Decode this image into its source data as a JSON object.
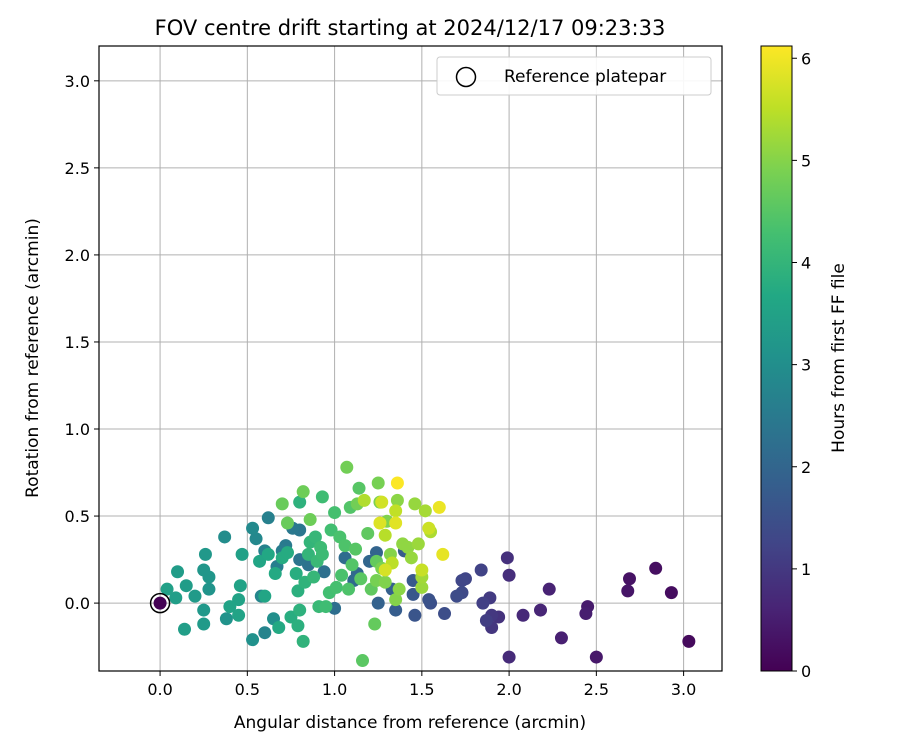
{
  "chart_data": {
    "type": "scatter",
    "title": "FOV centre drift starting at 2024/12/17 09:23:33",
    "xlabel": "Angular distance from reference (arcmin)",
    "ylabel": "Rotation from reference (arcmin)",
    "xlim": [
      -0.35,
      3.22
    ],
    "ylim": [
      -0.39,
      3.2
    ],
    "xticks": [
      0.0,
      0.5,
      1.0,
      1.5,
      2.0,
      2.5,
      3.0
    ],
    "xtick_labels": [
      "0.0",
      "0.5",
      "1.0",
      "1.5",
      "2.0",
      "2.5",
      "3.0"
    ],
    "yticks": [
      0.0,
      0.5,
      1.0,
      1.5,
      2.0,
      2.5,
      3.0
    ],
    "ytick_labels": [
      "0.0",
      "0.5",
      "1.0",
      "1.5",
      "2.0",
      "2.5",
      "3.0"
    ],
    "grid": true,
    "legend": {
      "position": "top-right",
      "entries": [
        "Reference platepar"
      ]
    },
    "colorbar": {
      "label": "Hours from first FF file",
      "colormap": "viridis",
      "range": [
        0,
        6.12
      ],
      "ticks": [
        0,
        1,
        2,
        3,
        4,
        5,
        6
      ],
      "tick_labels": [
        "0",
        "1",
        "2",
        "3",
        "4",
        "5",
        "6"
      ]
    },
    "reference_point": {
      "x": 0.0,
      "y": 0.0,
      "name": "Reference platepar"
    },
    "points": [
      {
        "x": 0.0,
        "y": 0.0,
        "c": 0.0
      },
      {
        "x": 3.03,
        "y": -0.22,
        "c": 0.15
      },
      {
        "x": 2.93,
        "y": 0.06,
        "c": 0.2
      },
      {
        "x": 2.84,
        "y": 0.2,
        "c": 0.25
      },
      {
        "x": 2.69,
        "y": 0.14,
        "c": 0.3
      },
      {
        "x": 2.68,
        "y": 0.07,
        "c": 0.35
      },
      {
        "x": 2.5,
        "y": -0.31,
        "c": 0.4
      },
      {
        "x": 2.45,
        "y": -0.02,
        "c": 0.45
      },
      {
        "x": 2.44,
        "y": -0.06,
        "c": 0.5
      },
      {
        "x": 2.3,
        "y": -0.2,
        "c": 0.55
      },
      {
        "x": 2.23,
        "y": 0.08,
        "c": 0.6
      },
      {
        "x": 2.18,
        "y": -0.04,
        "c": 0.65
      },
      {
        "x": 2.08,
        "y": -0.07,
        "c": 0.7
      },
      {
        "x": 2.0,
        "y": -0.31,
        "c": 0.75
      },
      {
        "x": 2.0,
        "y": 0.16,
        "c": 0.8
      },
      {
        "x": 1.99,
        "y": 0.26,
        "c": 0.85
      },
      {
        "x": 1.94,
        "y": -0.08,
        "c": 0.9
      },
      {
        "x": 1.9,
        "y": -0.14,
        "c": 0.95
      },
      {
        "x": 1.9,
        "y": -0.07,
        "c": 1.0
      },
      {
        "x": 1.89,
        "y": 0.03,
        "c": 1.05
      },
      {
        "x": 1.87,
        "y": -0.1,
        "c": 1.1
      },
      {
        "x": 1.85,
        "y": 0.0,
        "c": 1.15
      },
      {
        "x": 1.84,
        "y": 0.19,
        "c": 1.2
      },
      {
        "x": 1.75,
        "y": 0.14,
        "c": 1.25
      },
      {
        "x": 1.73,
        "y": 0.13,
        "c": 1.3
      },
      {
        "x": 1.73,
        "y": 0.06,
        "c": 1.35
      },
      {
        "x": 1.7,
        "y": 0.04,
        "c": 1.4
      },
      {
        "x": 1.63,
        "y": -0.06,
        "c": 1.45
      },
      {
        "x": 1.55,
        "y": 0.0,
        "c": 1.5
      },
      {
        "x": 1.54,
        "y": 0.02,
        "c": 1.55
      },
      {
        "x": 1.46,
        "y": -0.07,
        "c": 1.6
      },
      {
        "x": 1.45,
        "y": 0.05,
        "c": 1.65
      },
      {
        "x": 1.45,
        "y": 0.13,
        "c": 1.7
      },
      {
        "x": 1.4,
        "y": 0.3,
        "c": 1.75
      },
      {
        "x": 1.35,
        "y": -0.04,
        "c": 1.8
      },
      {
        "x": 1.33,
        "y": 0.08,
        "c": 1.85
      },
      {
        "x": 1.25,
        "y": 0.0,
        "c": 1.9
      },
      {
        "x": 1.24,
        "y": 0.29,
        "c": 1.95
      },
      {
        "x": 1.2,
        "y": 0.24,
        "c": 2.0
      },
      {
        "x": 1.13,
        "y": 0.17,
        "c": 2.05
      },
      {
        "x": 1.11,
        "y": 0.13,
        "c": 2.1
      },
      {
        "x": 1.06,
        "y": 0.26,
        "c": 2.15
      },
      {
        "x": 1.0,
        "y": -0.03,
        "c": 2.2
      },
      {
        "x": 0.94,
        "y": 0.18,
        "c": 2.25
      },
      {
        "x": 0.85,
        "y": 0.22,
        "c": 2.3
      },
      {
        "x": 0.8,
        "y": 0.25,
        "c": 2.35
      },
      {
        "x": 0.8,
        "y": 0.42,
        "c": 2.4
      },
      {
        "x": 0.76,
        "y": 0.43,
        "c": 2.45
      },
      {
        "x": 0.72,
        "y": 0.33,
        "c": 2.5
      },
      {
        "x": 0.7,
        "y": 0.3,
        "c": 2.55
      },
      {
        "x": 0.67,
        "y": 0.21,
        "c": 2.6
      },
      {
        "x": 0.62,
        "y": 0.49,
        "c": 2.65
      },
      {
        "x": 0.6,
        "y": 0.3,
        "c": 2.7
      },
      {
        "x": 0.6,
        "y": -0.17,
        "c": 2.75
      },
      {
        "x": 0.58,
        "y": 0.04,
        "c": 2.8
      },
      {
        "x": 0.55,
        "y": 0.37,
        "c": 2.85
      },
      {
        "x": 0.53,
        "y": 0.43,
        "c": 2.9
      },
      {
        "x": 0.37,
        "y": 0.38,
        "c": 2.95
      },
      {
        "x": 0.65,
        "y": -0.09,
        "c": 3.0
      },
      {
        "x": 0.53,
        "y": -0.21,
        "c": 3.05
      },
      {
        "x": 0.38,
        "y": -0.09,
        "c": 3.1
      },
      {
        "x": 0.28,
        "y": 0.08,
        "c": 3.15
      },
      {
        "x": 0.28,
        "y": 0.15,
        "c": 3.2
      },
      {
        "x": 0.25,
        "y": 0.19,
        "c": 3.2
      },
      {
        "x": 0.26,
        "y": 0.28,
        "c": 3.25
      },
      {
        "x": 0.25,
        "y": -0.04,
        "c": 3.25
      },
      {
        "x": 0.25,
        "y": -0.12,
        "c": 3.3
      },
      {
        "x": 0.2,
        "y": 0.04,
        "c": 3.3
      },
      {
        "x": 0.15,
        "y": 0.1,
        "c": 3.35
      },
      {
        "x": 0.1,
        "y": 0.18,
        "c": 3.35
      },
      {
        "x": 0.14,
        "y": -0.15,
        "c": 3.4
      },
      {
        "x": 0.09,
        "y": 0.03,
        "c": 3.4
      },
      {
        "x": 0.04,
        "y": 0.08,
        "c": 3.45
      },
      {
        "x": 0.47,
        "y": 0.28,
        "c": 3.45
      },
      {
        "x": 0.46,
        "y": 0.1,
        "c": 3.5
      },
      {
        "x": 0.45,
        "y": 0.02,
        "c": 3.5
      },
      {
        "x": 0.45,
        "y": -0.07,
        "c": 3.55
      },
      {
        "x": 0.4,
        "y": -0.02,
        "c": 3.55
      },
      {
        "x": 0.57,
        "y": 0.24,
        "c": 3.6
      },
      {
        "x": 0.6,
        "y": 0.04,
        "c": 3.6
      },
      {
        "x": 0.62,
        "y": 0.28,
        "c": 3.65
      },
      {
        "x": 0.66,
        "y": 0.17,
        "c": 3.7
      },
      {
        "x": 0.68,
        "y": -0.14,
        "c": 3.7
      },
      {
        "x": 0.7,
        "y": 0.26,
        "c": 3.75
      },
      {
        "x": 0.73,
        "y": 0.29,
        "c": 3.75
      },
      {
        "x": 0.75,
        "y": -0.08,
        "c": 3.8
      },
      {
        "x": 0.78,
        "y": 0.17,
        "c": 3.8
      },
      {
        "x": 0.79,
        "y": -0.13,
        "c": 3.85
      },
      {
        "x": 0.79,
        "y": 0.07,
        "c": 3.85
      },
      {
        "x": 0.8,
        "y": -0.04,
        "c": 3.9
      },
      {
        "x": 0.8,
        "y": 0.58,
        "c": 3.9
      },
      {
        "x": 0.82,
        "y": -0.22,
        "c": 3.95
      },
      {
        "x": 0.83,
        "y": 0.12,
        "c": 3.95
      },
      {
        "x": 0.85,
        "y": 0.28,
        "c": 4.0
      },
      {
        "x": 0.86,
        "y": 0.35,
        "c": 4.0
      },
      {
        "x": 0.88,
        "y": 0.15,
        "c": 4.05
      },
      {
        "x": 0.89,
        "y": 0.38,
        "c": 4.05
      },
      {
        "x": 0.9,
        "y": 0.24,
        "c": 4.1
      },
      {
        "x": 0.91,
        "y": -0.02,
        "c": 4.1
      },
      {
        "x": 0.92,
        "y": 0.32,
        "c": 4.15
      },
      {
        "x": 0.93,
        "y": 0.28,
        "c": 4.15
      },
      {
        "x": 0.93,
        "y": 0.61,
        "c": 4.2
      },
      {
        "x": 0.95,
        "y": -0.02,
        "c": 4.2
      },
      {
        "x": 0.97,
        "y": 0.06,
        "c": 4.25
      },
      {
        "x": 0.98,
        "y": 0.42,
        "c": 4.25
      },
      {
        "x": 1.0,
        "y": 0.52,
        "c": 4.3
      },
      {
        "x": 1.01,
        "y": 0.09,
        "c": 4.3
      },
      {
        "x": 1.03,
        "y": 0.38,
        "c": 4.35
      },
      {
        "x": 1.04,
        "y": 0.16,
        "c": 4.35
      },
      {
        "x": 1.06,
        "y": 0.33,
        "c": 4.4
      },
      {
        "x": 1.08,
        "y": 0.08,
        "c": 4.4
      },
      {
        "x": 1.09,
        "y": 0.55,
        "c": 4.45
      },
      {
        "x": 1.1,
        "y": 0.22,
        "c": 4.45
      },
      {
        "x": 1.12,
        "y": 0.31,
        "c": 4.5
      },
      {
        "x": 1.14,
        "y": 0.66,
        "c": 4.5
      },
      {
        "x": 1.15,
        "y": 0.14,
        "c": 4.55
      },
      {
        "x": 1.16,
        "y": -0.33,
        "c": 4.55
      },
      {
        "x": 1.19,
        "y": 0.4,
        "c": 4.6
      },
      {
        "x": 1.21,
        "y": 0.08,
        "c": 4.6
      },
      {
        "x": 1.23,
        "y": -0.12,
        "c": 4.65
      },
      {
        "x": 1.24,
        "y": 0.24,
        "c": 4.65
      },
      {
        "x": 0.7,
        "y": 0.57,
        "c": 4.7
      },
      {
        "x": 0.73,
        "y": 0.46,
        "c": 4.7
      },
      {
        "x": 0.82,
        "y": 0.64,
        "c": 4.75
      },
      {
        "x": 0.86,
        "y": 0.48,
        "c": 4.75
      },
      {
        "x": 1.07,
        "y": 0.78,
        "c": 4.8
      },
      {
        "x": 1.13,
        "y": 0.57,
        "c": 4.8
      },
      {
        "x": 1.24,
        "y": 0.13,
        "c": 4.85
      },
      {
        "x": 1.25,
        "y": 0.69,
        "c": 4.85
      },
      {
        "x": 1.26,
        "y": 0.58,
        "c": 4.9
      },
      {
        "x": 1.27,
        "y": 0.2,
        "c": 4.9
      },
      {
        "x": 1.29,
        "y": 0.12,
        "c": 4.95
      },
      {
        "x": 1.3,
        "y": 0.47,
        "c": 4.95
      },
      {
        "x": 1.32,
        "y": 0.28,
        "c": 5.0
      },
      {
        "x": 1.35,
        "y": 0.02,
        "c": 5.0
      },
      {
        "x": 1.36,
        "y": 0.59,
        "c": 5.05
      },
      {
        "x": 1.37,
        "y": 0.08,
        "c": 5.05
      },
      {
        "x": 1.39,
        "y": 0.34,
        "c": 5.1
      },
      {
        "x": 1.42,
        "y": 0.32,
        "c": 5.1
      },
      {
        "x": 1.44,
        "y": 0.26,
        "c": 5.15
      },
      {
        "x": 1.46,
        "y": 0.57,
        "c": 5.15
      },
      {
        "x": 1.48,
        "y": 0.34,
        "c": 5.2
      },
      {
        "x": 1.5,
        "y": 0.09,
        "c": 5.2
      },
      {
        "x": 1.5,
        "y": 0.15,
        "c": 5.25
      },
      {
        "x": 1.52,
        "y": 0.53,
        "c": 5.3
      },
      {
        "x": 1.55,
        "y": 0.41,
        "c": 5.35
      },
      {
        "x": 1.17,
        "y": 0.59,
        "c": 5.4
      },
      {
        "x": 1.29,
        "y": 0.39,
        "c": 5.45
      },
      {
        "x": 1.33,
        "y": 0.23,
        "c": 5.5
      },
      {
        "x": 1.35,
        "y": 0.53,
        "c": 5.55
      },
      {
        "x": 1.5,
        "y": 0.19,
        "c": 5.6
      },
      {
        "x": 1.54,
        "y": 0.43,
        "c": 5.65
      },
      {
        "x": 1.27,
        "y": 0.58,
        "c": 5.7
      },
      {
        "x": 1.29,
        "y": 0.19,
        "c": 5.75
      },
      {
        "x": 1.26,
        "y": 0.46,
        "c": 5.8
      },
      {
        "x": 1.35,
        "y": 0.46,
        "c": 5.85
      },
      {
        "x": 1.62,
        "y": 0.28,
        "c": 5.9
      },
      {
        "x": 1.6,
        "y": 0.55,
        "c": 5.95
      },
      {
        "x": 1.36,
        "y": 0.69,
        "c": 6.1
      }
    ]
  }
}
